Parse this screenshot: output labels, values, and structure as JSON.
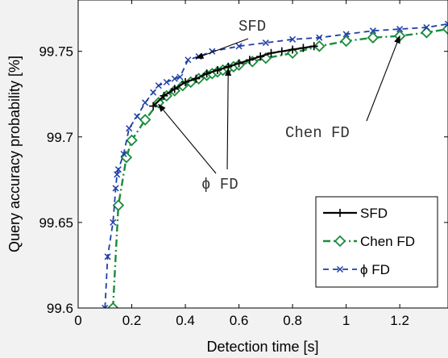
{
  "chart_data": {
    "type": "line",
    "xlabel": "Detection time [s]",
    "ylabel": "Query accuracy probability [%]",
    "xlim": [
      0,
      1.38
    ],
    "ylim": [
      99.6,
      99.78
    ],
    "xticks": [
      "0",
      "0.2",
      "0.4",
      "0.6",
      "0.8",
      "1",
      "1.2"
    ],
    "yticks": [
      "99.6",
      "99.65",
      "99.7",
      "99.75"
    ],
    "grid": false,
    "legend_position": "bottom-right",
    "series": [
      {
        "name": "SFD",
        "color": "#000000",
        "marker": "plus",
        "x": [
          0.28,
          0.32,
          0.36,
          0.4,
          0.44,
          0.48,
          0.52,
          0.56,
          0.6,
          0.64,
          0.68,
          0.72,
          0.76,
          0.8,
          0.84,
          0.88
        ],
        "y": [
          99.718,
          99.724,
          99.728,
          99.732,
          99.734,
          99.737,
          99.739,
          99.741,
          99.743,
          99.745,
          99.747,
          99.749,
          99.75,
          99.751,
          99.752,
          99.753
        ]
      },
      {
        "name": "Chen FD",
        "color": "#1a8c3c",
        "marker": "diamond",
        "x": [
          0.13,
          0.15,
          0.18,
          0.2,
          0.25,
          0.3,
          0.33,
          0.36,
          0.39,
          0.42,
          0.45,
          0.48,
          0.5,
          0.52,
          0.54,
          0.56,
          0.58,
          0.6,
          0.65,
          0.7,
          0.8,
          0.9,
          1.0,
          1.1,
          1.2,
          1.3,
          1.38
        ],
        "y": [
          99.6,
          99.66,
          99.688,
          99.698,
          99.71,
          99.72,
          99.724,
          99.727,
          99.73,
          99.732,
          99.734,
          99.736,
          99.737,
          99.738,
          99.739,
          99.74,
          99.741,
          99.742,
          99.744,
          99.746,
          99.749,
          99.753,
          99.756,
          99.758,
          99.759,
          99.761,
          99.763
        ]
      },
      {
        "name": "ϕ FD",
        "color": "#1f3fa6",
        "marker": "x",
        "x": [
          0.1,
          0.11,
          0.13,
          0.14,
          0.145,
          0.15,
          0.17,
          0.19,
          0.22,
          0.25,
          0.28,
          0.3,
          0.33,
          0.36,
          0.38,
          0.41,
          0.45,
          0.5,
          0.6,
          0.7,
          0.8,
          0.9,
          1.0,
          1.1,
          1.2,
          1.3,
          1.38
        ],
        "y": [
          99.6,
          99.63,
          99.65,
          99.67,
          99.678,
          99.681,
          99.69,
          99.705,
          99.712,
          99.72,
          99.726,
          99.73,
          99.732,
          99.734,
          99.735,
          99.745,
          99.747,
          99.75,
          99.753,
          99.755,
          99.757,
          99.758,
          99.76,
          99.762,
          99.763,
          99.764,
          99.766
        ]
      }
    ],
    "annotations": [
      {
        "text": "SFD",
        "target": [
          0.44,
          99.746
        ]
      },
      {
        "text": "Chen FD",
        "target": [
          1.2,
          99.759
        ]
      },
      {
        "text": "ϕ FD",
        "target": [
          0.56,
          99.74
        ]
      },
      {
        "text": "",
        "target": [
          0.3,
          99.719
        ]
      }
    ]
  }
}
